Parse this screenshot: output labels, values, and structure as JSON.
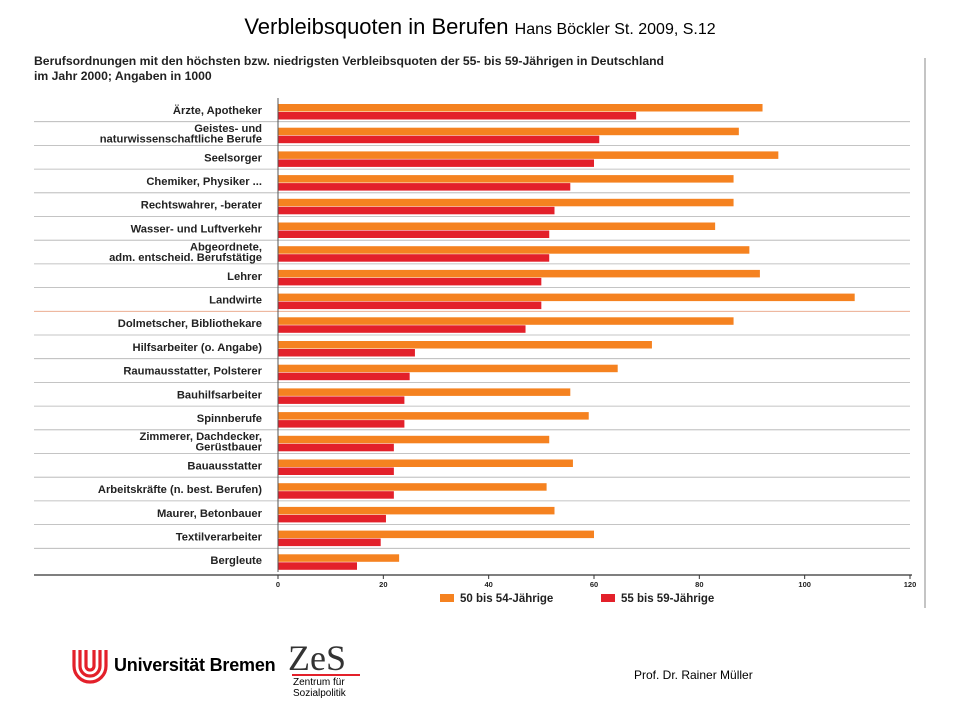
{
  "header": {
    "title": "Verbleibsquoten in Berufen",
    "source": "Hans Böckler St. 2009, S.12"
  },
  "chart_data": {
    "type": "bar",
    "orientation": "horizontal",
    "title_line1": "Berufsordnungen mit den höchsten bzw. niedrigsten Verbleibsquoten der 55- bis 59-Jährigen in Deutschland",
    "title_line2": "im Jahr 2000; Angaben in 1000",
    "categories": [
      [
        "Ärzte, Apotheker"
      ],
      [
        "Geistes- und",
        "naturwissenschaftliche Berufe"
      ],
      [
        "Seelsorger"
      ],
      [
        "Chemiker, Physiker ..."
      ],
      [
        "Rechtswahrer, -berater"
      ],
      [
        "Wasser- und Luftverkehr"
      ],
      [
        "Abgeordnete,",
        "adm. entscheid. Berufstätige"
      ],
      [
        "Lehrer"
      ],
      [
        "Landwirte"
      ],
      [
        "Dolmetscher, Bibliothekare"
      ],
      [
        "Hilfsarbeiter (o. Angabe)"
      ],
      [
        "Raumausstatter, Polsterer"
      ],
      [
        "Bauhilfsarbeiter"
      ],
      [
        "Spinnberufe"
      ],
      [
        "Zimmerer, Dachdecker,",
        "Gerüstbauer"
      ],
      [
        "Bauausstatter"
      ],
      [
        "Arbeitskräfte (n. best. Berufen)"
      ],
      [
        "Maurer, Betonbauer"
      ],
      [
        "Textilverarbeiter"
      ],
      [
        "Bergleute"
      ]
    ],
    "series": [
      {
        "name": "50 bis 54-Jährige",
        "color": "#f58220",
        "values": [
          92,
          87.5,
          95,
          86.5,
          86.5,
          83,
          89.5,
          91.5,
          109.5,
          86.5,
          71,
          64.5,
          55.5,
          59,
          51.5,
          56,
          51,
          52.5,
          60,
          23
        ]
      },
      {
        "name": "55 bis 59-Jährige",
        "color": "#e3202a",
        "values": [
          68,
          61,
          60,
          55.5,
          52.5,
          51.5,
          51.5,
          50,
          50,
          47,
          26,
          25,
          24,
          24,
          22,
          22,
          22,
          20.5,
          19.5,
          15
        ]
      }
    ],
    "xlim": [
      0,
      120
    ],
    "xticks": [
      0,
      20,
      40,
      60,
      80,
      100,
      120
    ],
    "grid": true,
    "legend_position": "bottom-right"
  },
  "footer": {
    "university": "Universität Bremen",
    "zes_logo": "ZeS",
    "zes_line1": "Zentrum für",
    "zes_line2": "Sozialpolitik",
    "author": "Prof. Dr. Rainer Müller"
  }
}
